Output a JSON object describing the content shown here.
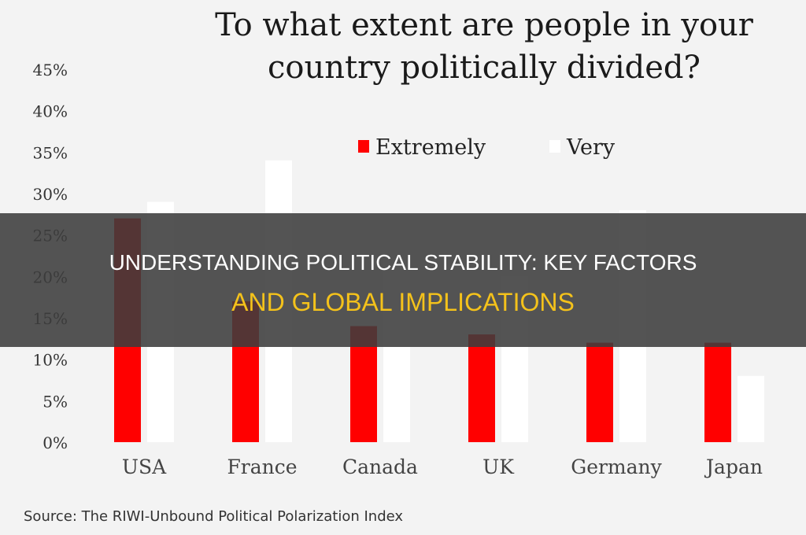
{
  "chart_data": {
    "type": "bar",
    "title": "To what extent are people in your country politically divided?",
    "title_lines": [
      "To what extent are people in your",
      "country politically divided?"
    ],
    "categories": [
      "USA",
      "France",
      "Canada",
      "UK",
      "Germany",
      "Japan"
    ],
    "series": [
      {
        "name": "Extremely",
        "color": "#ff0000",
        "values": [
          27,
          17,
          14,
          13,
          12,
          12
        ]
      },
      {
        "name": "Very",
        "color": "#ffffff",
        "values": [
          29,
          34,
          22,
          20,
          28,
          8
        ]
      }
    ],
    "ylim": [
      0,
      45
    ],
    "yticks": [
      "0%",
      "5%",
      "10%",
      "15%",
      "20%",
      "25%",
      "30%",
      "35%",
      "40%",
      "45%"
    ],
    "grid": false,
    "legend_placement": "top-center",
    "source": "Source: The RIWI-Unbound Political Polarization Index"
  },
  "banner": {
    "line1": "UNDERSTANDING POLITICAL STABILITY: KEY FACTORS",
    "line2": "AND GLOBAL IMPLICATIONS",
    "text_color": "#ffffff",
    "accent_color": "#f4c21b"
  }
}
